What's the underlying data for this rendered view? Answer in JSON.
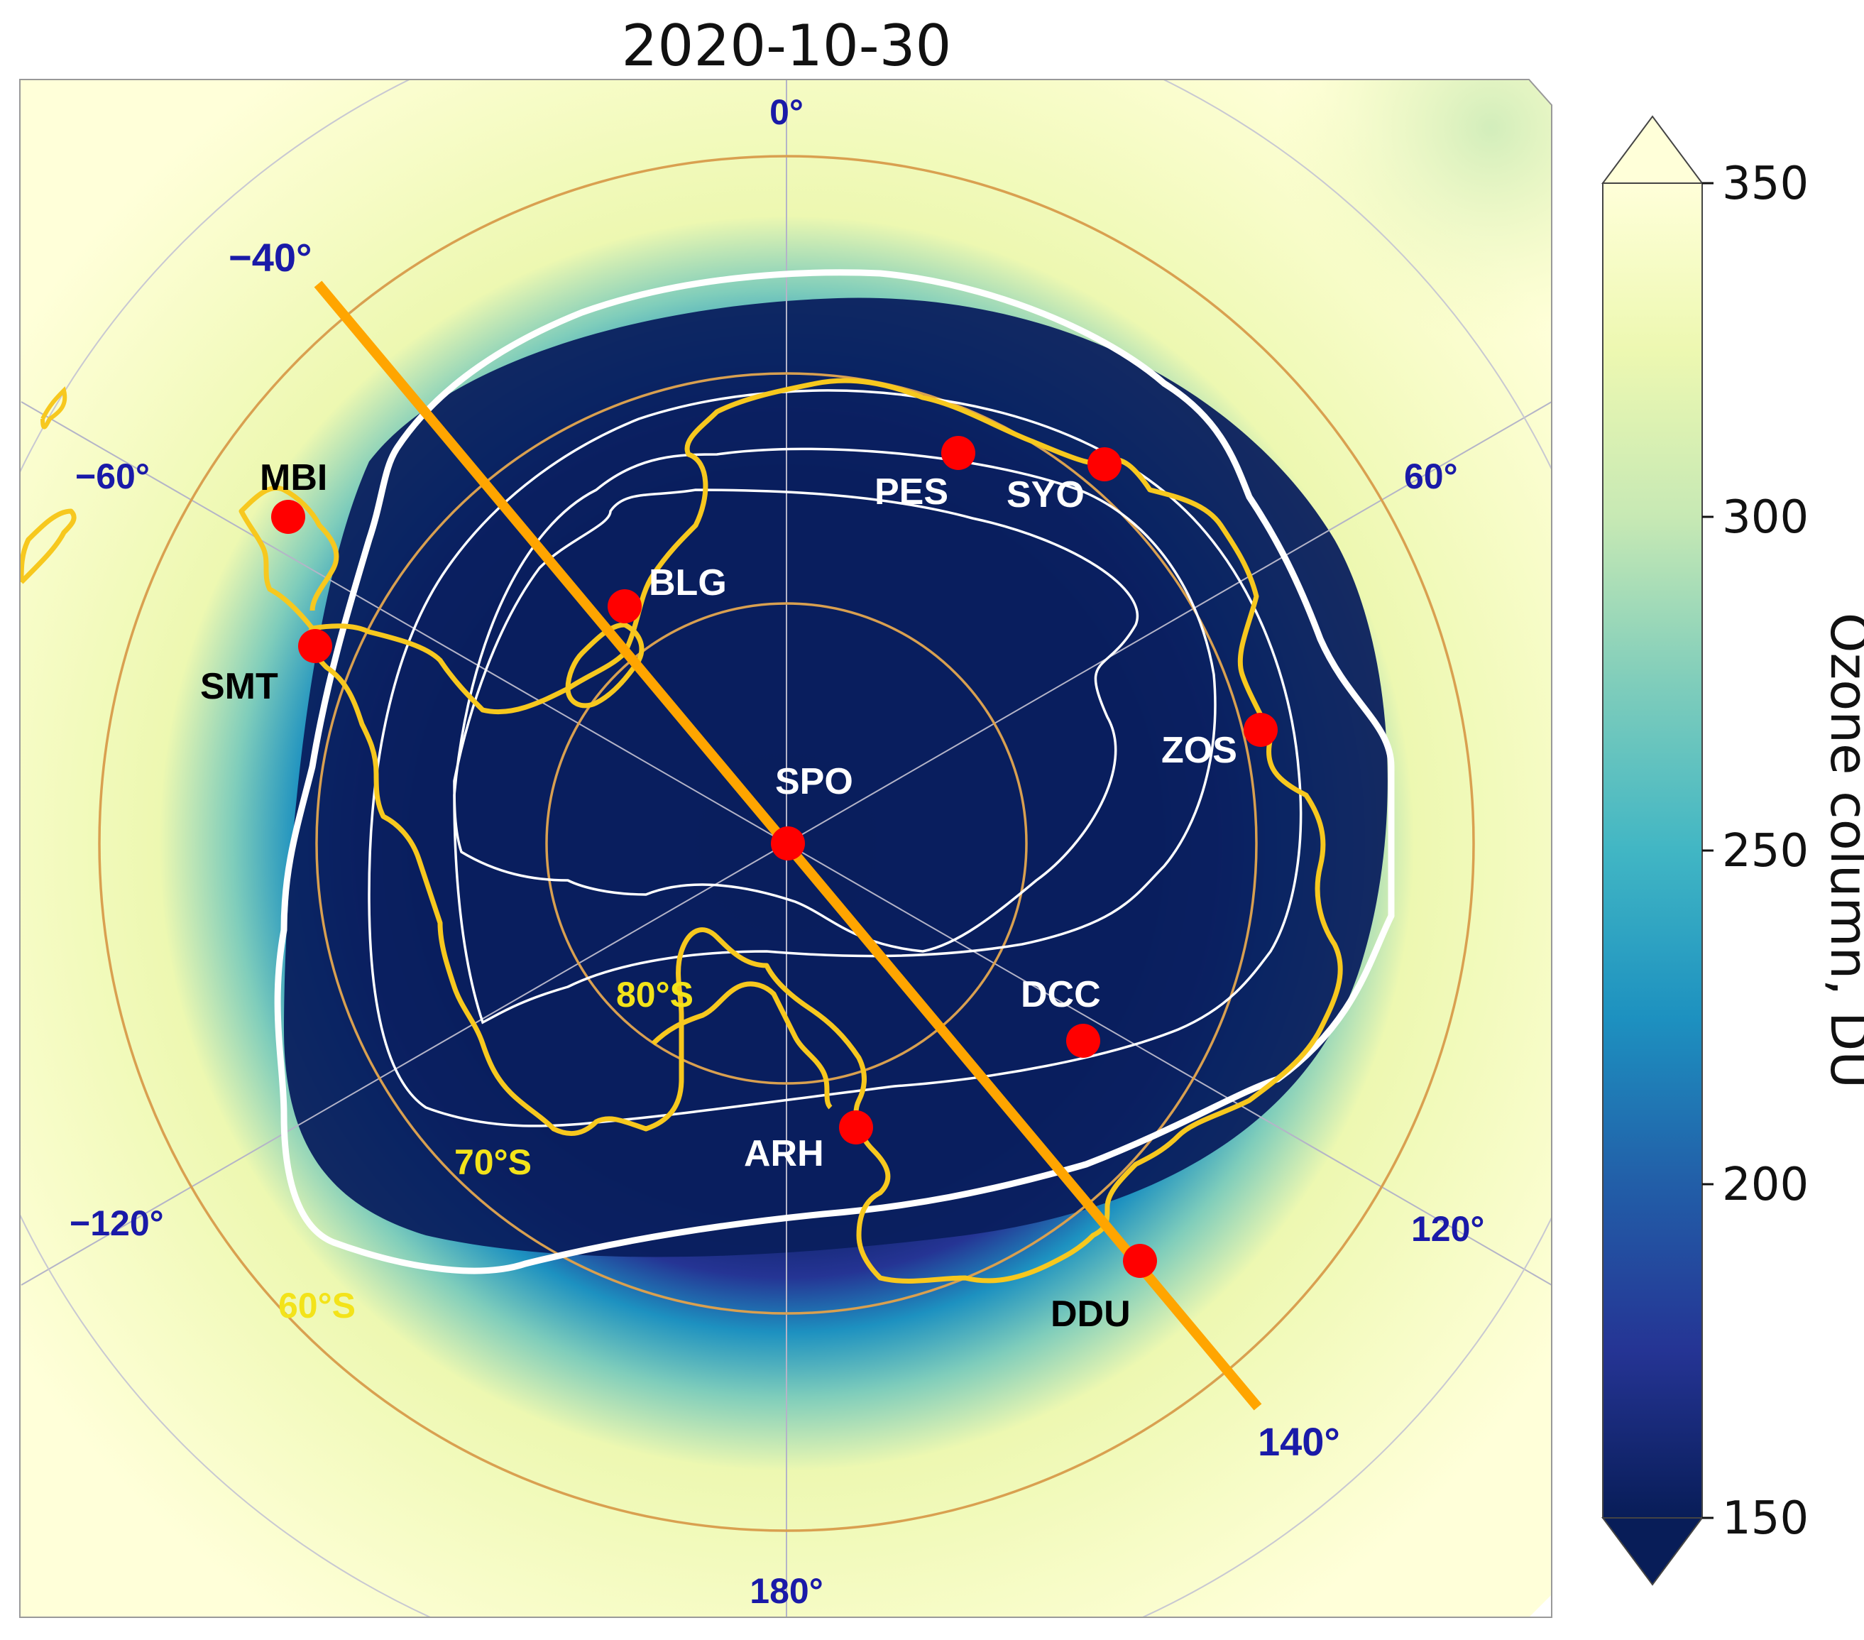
{
  "title": "2020-10-30",
  "colorbar": {
    "label": "Ozone column, DU",
    "ticks": [
      "150",
      "200",
      "250",
      "300",
      "350"
    ],
    "min": 150,
    "max": 350,
    "extend": "both",
    "colors": [
      "#081d58",
      "#253494",
      "#225ea8",
      "#1d91c0",
      "#41b6c4",
      "#7fcdbb",
      "#c7e9b4",
      "#edf8b1",
      "#ffffd9"
    ]
  },
  "longitude_labels": {
    "lon_0": "0°",
    "lon_60": "60°",
    "lon_120": "120°",
    "lon_180": "180°",
    "lon_m120": "−120°",
    "lon_m60": "−60°"
  },
  "latitude_labels": {
    "lat_80": "80°S",
    "lat_70": "70°S",
    "lat_60": "60°S"
  },
  "transect": {
    "start_label": "−40°",
    "end_label": "140°",
    "color": "#ffa500"
  },
  "stations": [
    {
      "code": "MBI",
      "label_color": "black"
    },
    {
      "code": "SMT",
      "label_color": "black"
    },
    {
      "code": "BLG",
      "label_color": "white"
    },
    {
      "code": "PES",
      "label_color": "white"
    },
    {
      "code": "SYO",
      "label_color": "white"
    },
    {
      "code": "ZOS",
      "label_color": "white"
    },
    {
      "code": "SPO",
      "label_color": "white"
    },
    {
      "code": "DCC",
      "label_color": "white"
    },
    {
      "code": "ARH",
      "label_color": "white"
    },
    {
      "code": "DDU",
      "label_color": "black"
    }
  ],
  "colors": {
    "station_marker": "#ff0000",
    "coastline": "#f7c81e",
    "contour": "#ffffff",
    "lat_circle": "#d9a050",
    "gridline": "#b4b4c8"
  }
}
